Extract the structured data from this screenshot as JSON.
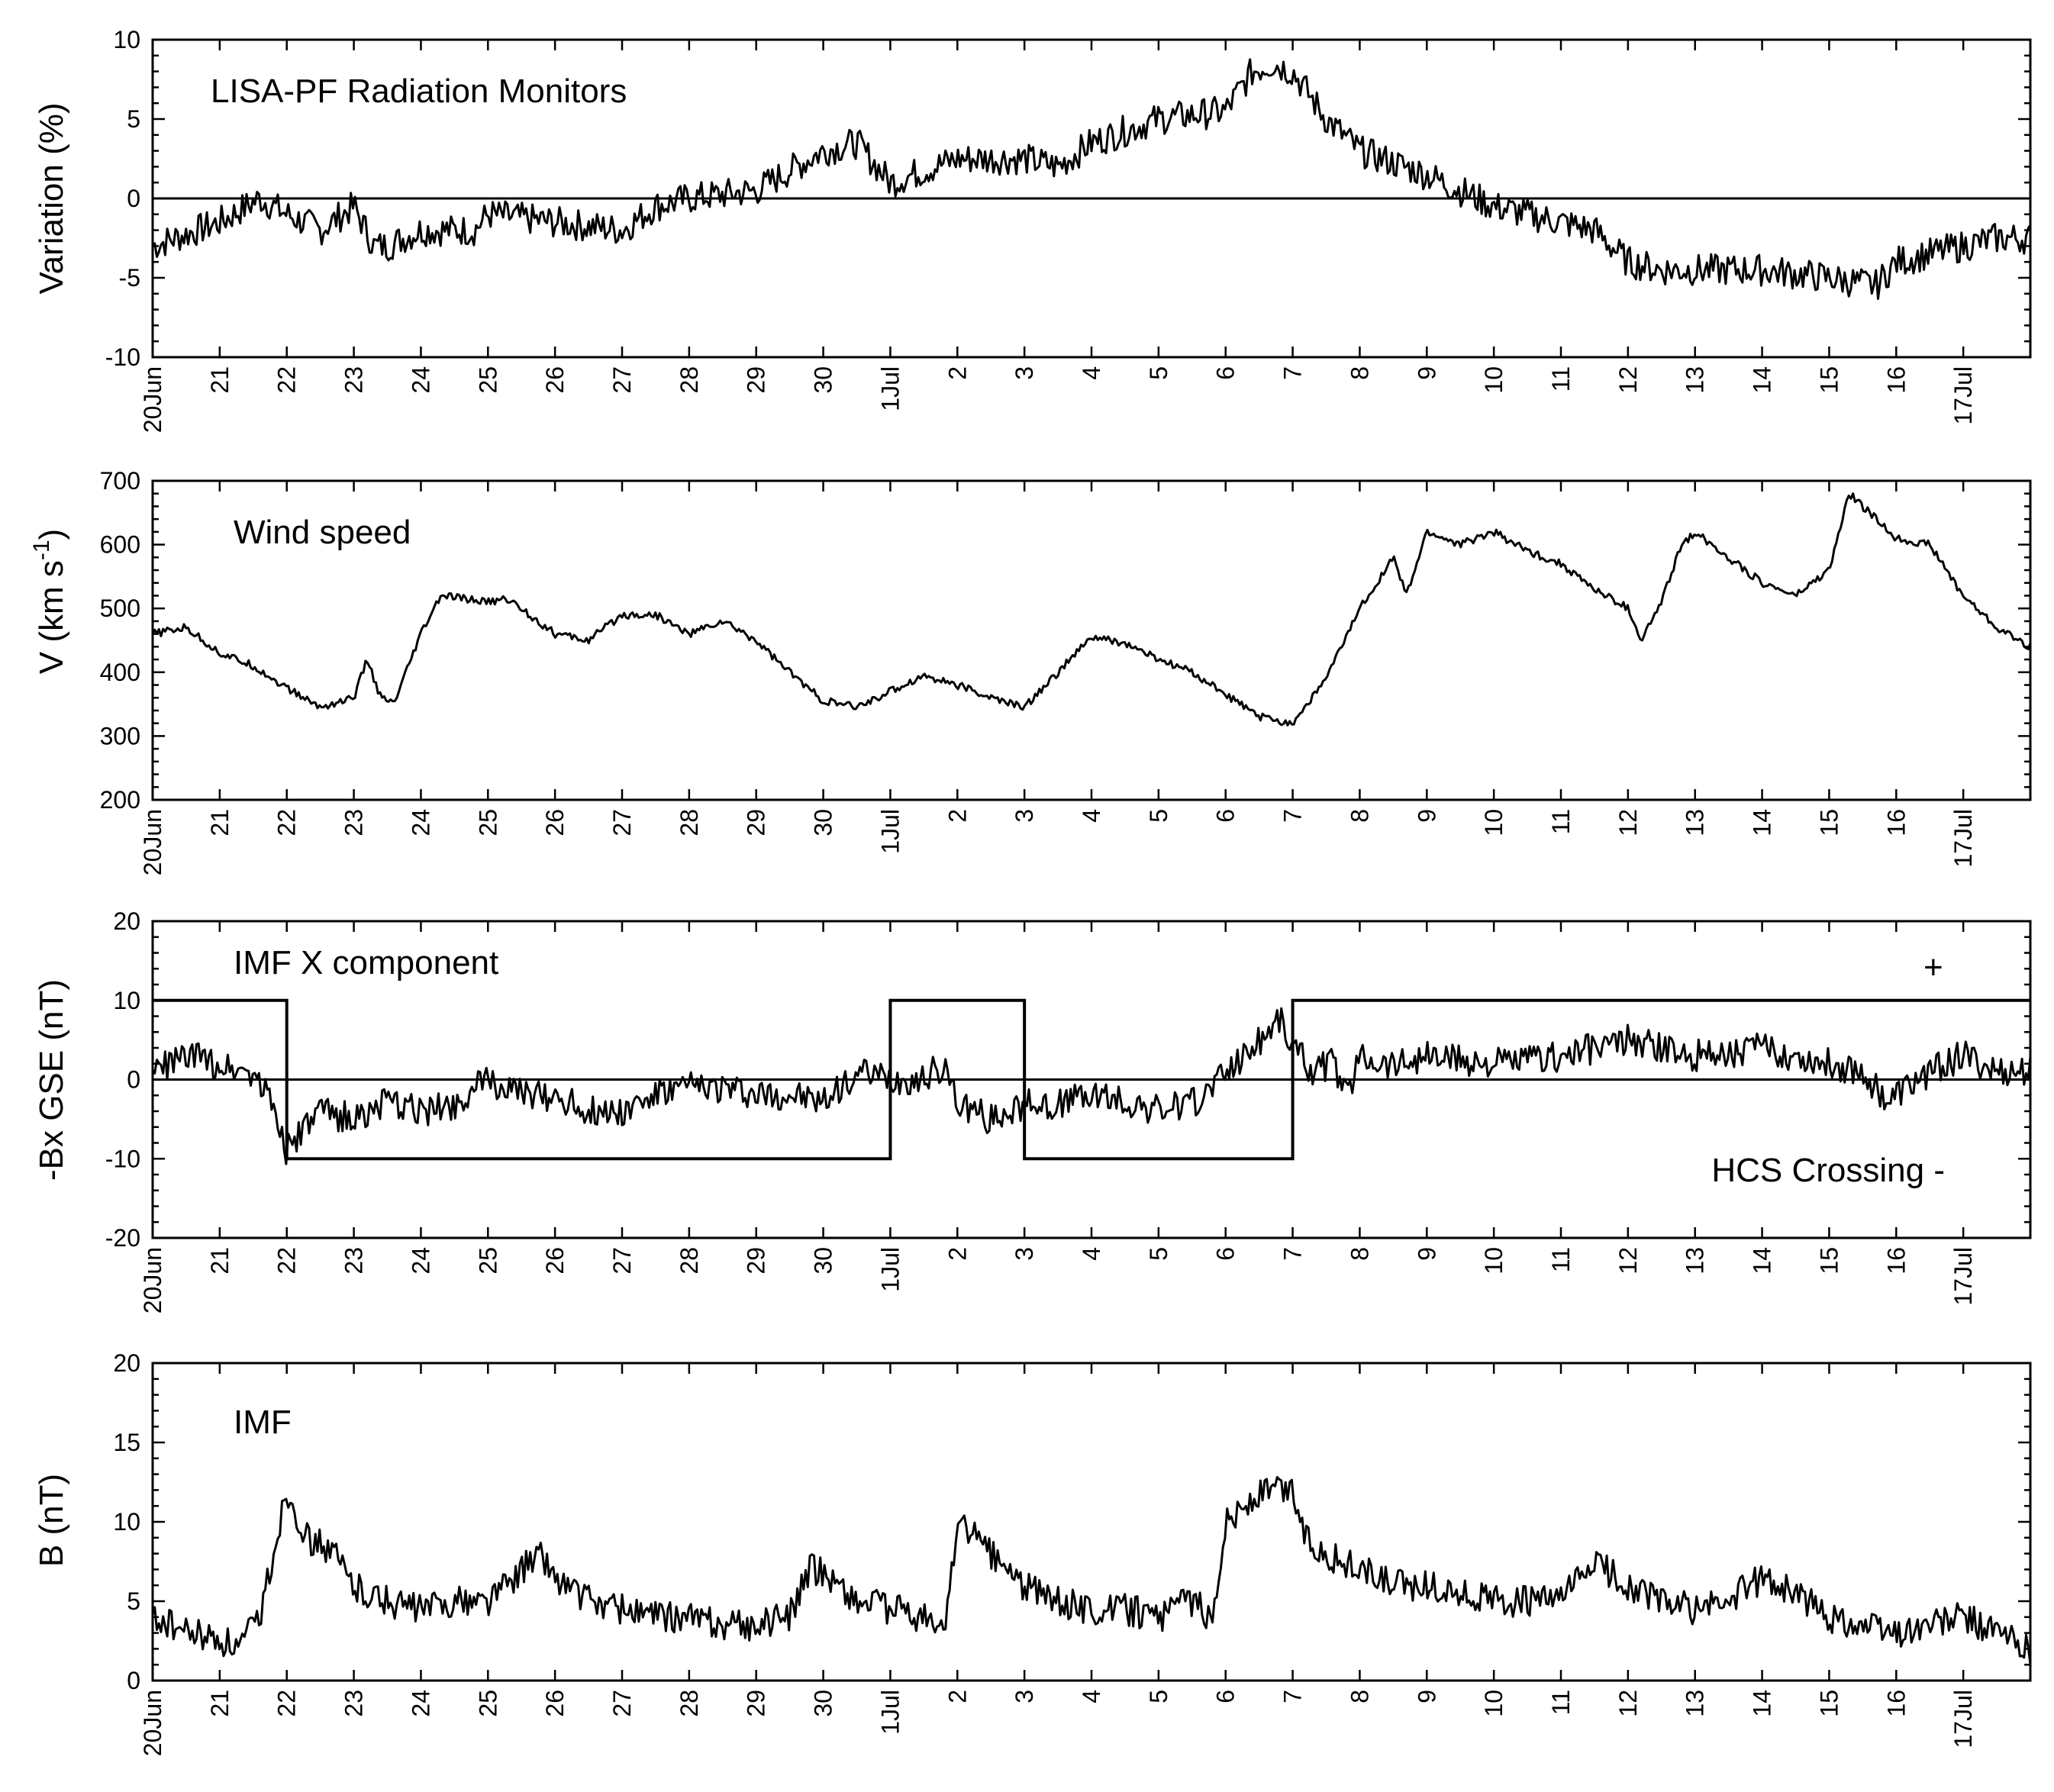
{
  "chart_data": [
    {
      "type": "line",
      "id": "radiation",
      "ylabel": "Variation (%)",
      "ylim": [
        -10,
        10
      ],
      "yticks": [
        -10,
        -5,
        0,
        5,
        10
      ],
      "annotation": "LISA-PF Radiation Monitors",
      "zero_line": true,
      "x_axis": {
        "start": "20 Jun",
        "end": "18 Jul",
        "unit": "day",
        "tick_labels": [
          "20Jun",
          "21",
          "22",
          "23",
          "24",
          "25",
          "26",
          "27",
          "28",
          "29",
          "30",
          "1Jul",
          "2",
          "3",
          "4",
          "5",
          "6",
          "7",
          "8",
          "9",
          "10",
          "11",
          "12",
          "13",
          "14",
          "15",
          "16",
          "17Jul"
        ]
      },
      "series": [
        {
          "x": [
            "20 Jun",
            "21 Jun",
            "21.6 Jun",
            "22 Jun",
            "22.5 Jun",
            "23 Jun",
            "23.3 Jun",
            "23.5 Jun",
            "24 Jun",
            "24.8 Jun",
            "25 Jun",
            "26 Jun",
            "27 Jun",
            "27.5 Jun",
            "28 Jun",
            "29 Jun",
            "30 Jun",
            "30.5 Jun",
            "1 Jul",
            "2 Jul",
            "3 Jul",
            "3.5 Jul",
            "4 Jul",
            "5 Jul",
            "6 Jul",
            "6.4 Jul",
            "6.7 Jul",
            "7 Jul",
            "7.5 Jul",
            "8 Jul",
            "9 Jul",
            "10 Jul",
            "11 Jul",
            "11.5 Jul",
            "12 Jul",
            "12.5 Jul",
            "13 Jul",
            "14 Jul",
            "15 Jul",
            "15.7 Jul",
            "16 Jul",
            "17 Jul",
            "17.5 Jul",
            "18 Jul"
          ],
          "values": [
            -3,
            -1.5,
            0,
            -1,
            -2,
            -0.5,
            -3,
            -3,
            -2,
            -2,
            -1,
            -1.5,
            -2,
            -0.5,
            0,
            0.5,
            3,
            3.5,
            1,
            2.5,
            2.5,
            2,
            3.5,
            5,
            5.5,
            8,
            8.5,
            8,
            5,
            3,
            1.5,
            -0.5,
            -1.5,
            -2,
            -4,
            -4.5,
            -4.5,
            -4.5,
            -5,
            -5.5,
            -4,
            -3,
            -2.5,
            -2.5
          ]
        }
      ]
    },
    {
      "type": "line",
      "id": "wind",
      "ylabel": "V (km s-1)",
      "ylim": [
        200,
        700
      ],
      "yticks": [
        200,
        300,
        400,
        500,
        600,
        700
      ],
      "annotation": "Wind speed",
      "zero_line": false,
      "x_axis": {
        "start": "20 Jun",
        "end": "18 Jul",
        "unit": "day",
        "tick_labels": [
          "20Jun",
          "21",
          "22",
          "23",
          "24",
          "25",
          "26",
          "27",
          "28",
          "29",
          "30",
          "1Jul",
          "2",
          "3",
          "4",
          "5",
          "6",
          "7",
          "8",
          "9",
          "10",
          "11",
          "12",
          "13",
          "14",
          "15",
          "16",
          "17Jul"
        ]
      },
      "series": [
        {
          "x": [
            "20 Jun",
            "20.5 Jun",
            "21 Jun",
            "21.5 Jun",
            "22 Jun",
            "22.5 Jun",
            "23 Jun",
            "23.2 Jun",
            "23.4 Jun",
            "23.6 Jun",
            "24 Jun",
            "24.3 Jun",
            "25 Jun",
            "25.3 Jun",
            "26 Jun",
            "26.5 Jun",
            "27 Jun",
            "27.5 Jun",
            "28 Jun",
            "28.5 Jun",
            "29 Jun",
            "29.5 Jun",
            "30 Jun",
            "30.5 Jun",
            "1 Jul",
            "1.5 Jul",
            "2 Jul",
            "2.5 Jul",
            "3 Jul",
            "3.5 Jul",
            "4 Jul",
            "4.5 Jul",
            "5 Jul",
            "5.5 Jul",
            "6 Jul",
            "6.5 Jul",
            "7 Jul",
            "7.5 Jul",
            "8 Jul",
            "8.5 Jul",
            "8.7 Jul",
            "9 Jul",
            "9.5 Jul",
            "10 Jul",
            "10.5 Jul",
            "11 Jul",
            "11.5 Jul",
            "12 Jul",
            "12.2 Jul",
            "12.5 Jul",
            "12.8 Jul",
            "13 Jul",
            "13.5 Jul",
            "14 Jul",
            "14.5 Jul",
            "15 Jul",
            "15.3 Jul",
            "16 Jul",
            "16.5 Jul",
            "17 Jul",
            "17.5 Jul",
            "18 Jul"
          ],
          "values": [
            460,
            470,
            430,
            410,
            375,
            345,
            360,
            420,
            360,
            350,
            460,
            520,
            510,
            515,
            460,
            450,
            490,
            490,
            460,
            480,
            450,
            400,
            355,
            345,
            370,
            395,
            380,
            360,
            345,
            400,
            455,
            445,
            420,
            400,
            365,
            330,
            320,
            390,
            500,
            580,
            520,
            620,
            600,
            620,
            590,
            570,
            530,
            500,
            450,
            510,
            600,
            620,
            580,
            540,
            520,
            560,
            680,
            610,
            600,
            520,
            470,
            440
          ]
        }
      ]
    },
    {
      "type": "line",
      "id": "imfx",
      "ylabel": "-Bx GSE (nT)",
      "ylim": [
        -20,
        20
      ],
      "yticks": [
        -20,
        -10,
        0,
        10,
        20
      ],
      "annotation": "IMF X component",
      "annotation_plus": "+",
      "annotation_hcs": "HCS Crossing -",
      "zero_line": true,
      "x_axis": {
        "start": "20 Jun",
        "end": "18 Jul",
        "unit": "day",
        "tick_labels": [
          "20Jun",
          "21",
          "22",
          "23",
          "24",
          "25",
          "26",
          "27",
          "28",
          "29",
          "30",
          "1Jul",
          "2",
          "3",
          "4",
          "5",
          "6",
          "7",
          "8",
          "9",
          "10",
          "11",
          "12",
          "13",
          "14",
          "15",
          "16",
          "17Jul"
        ]
      },
      "step_series": {
        "name": "HCS Crossing",
        "x": [
          "20 Jun",
          "22 Jun",
          "1 Jul",
          "3 Jul",
          "7 Jul",
          "18 Jul"
        ],
        "values": [
          10,
          -10,
          10,
          -10,
          10,
          10
        ]
      },
      "series": [
        {
          "x": [
            "20 Jun",
            "20.5 Jun",
            "21 Jun",
            "21.5 Jun",
            "21.8 Jun",
            "22 Jun",
            "22.5 Jun",
            "23 Jun",
            "23.5 Jun",
            "24 Jun",
            "24.5 Jun",
            "25 Jun",
            "25.5 Jun",
            "26 Jun",
            "26.5 Jun",
            "27 Jun",
            "27.5 Jun",
            "28 Jun",
            "28.5 Jun",
            "29 Jun",
            "29.5 Jun",
            "30 Jun",
            "30.5 Jun",
            "1 Jul",
            "1.5 Jul",
            "1.8 Jul",
            "2 Jul",
            "2.5 Jul",
            "3 Jul",
            "3.5 Jul",
            "4 Jul",
            "4.5 Jul",
            "5 Jul",
            "5.5 Jul",
            "6 Jul",
            "6.5 Jul",
            "6.8 Jul",
            "7 Jul",
            "7.3 Jul",
            "7.6 Jul",
            "7.8 Jul",
            "8 Jul",
            "8.5 Jul",
            "9 Jul",
            "10 Jul",
            "11 Jul",
            "12 Jul",
            "13 Jul",
            "14 Jul",
            "15 Jul",
            "15.5 Jul",
            "15.9 Jul",
            "16 Jul",
            "16.5 Jul",
            "17 Jul",
            "17.5 Jul",
            "18 Jul"
          ],
          "values": [
            1,
            3,
            2,
            1,
            -3,
            -9,
            -4,
            -5,
            -3,
            -4,
            -3,
            0,
            -2,
            -2,
            -4,
            -4,
            -2,
            -1,
            -1,
            -2,
            -2,
            -3,
            1,
            0,
            0,
            2,
            -3,
            -5,
            -3,
            -3,
            -2,
            -3,
            -4,
            -3,
            1,
            5,
            8,
            4,
            1,
            2,
            -2,
            3,
            2,
            3,
            2,
            3,
            5,
            3,
            4,
            2,
            1,
            -3,
            -2,
            1,
            3,
            1,
            1
          ]
        }
      ]
    },
    {
      "type": "line",
      "id": "imf",
      "ylabel": "B (nT)",
      "ylim": [
        0,
        20
      ],
      "yticks": [
        0,
        5,
        10,
        15,
        20
      ],
      "annotation": "IMF",
      "zero_line": false,
      "x_axis": {
        "start": "20 Jun",
        "end": "18 Jul",
        "unit": "day",
        "tick_labels": [
          "20Jun",
          "21",
          "22",
          "23",
          "24",
          "25",
          "26",
          "27",
          "28",
          "29",
          "30",
          "1Jul",
          "2",
          "3",
          "4",
          "5",
          "6",
          "7",
          "8",
          "9",
          "10",
          "11",
          "12",
          "13",
          "14",
          "15",
          "16",
          "17Jul"
        ]
      },
      "series": [
        {
          "x": [
            "20 Jun",
            "20.5 Jun",
            "21 Jun",
            "21.3 Jun",
            "21.6 Jun",
            "21.9 Jun",
            "22 Jun",
            "22.3 Jun",
            "22.7 Jun",
            "23 Jun",
            "23.5 Jun",
            "24 Jun",
            "24.5 Jun",
            "25 Jun",
            "25.5 Jun",
            "25.8 Jun",
            "26 Jun",
            "26.5 Jun",
            "27 Jun",
            "27.5 Jun",
            "28 Jun",
            "28.5 Jun",
            "29 Jun",
            "29.5 Jun",
            "29.8 Jun",
            "30 Jun",
            "30.5 Jun",
            "1 Jul",
            "1.5 Jul",
            "1.8 Jul",
            "2 Jul",
            "2.5 Jul",
            "3 Jul",
            "3.5 Jul",
            "4 Jul",
            "4.5 Jul",
            "5 Jul",
            "5.5 Jul",
            "5.8 Jul",
            "6 Jul",
            "6.3 Jul",
            "6.6 Jul",
            "7 Jul",
            "7.2 Jul",
            "7.5 Jul",
            "8 Jul",
            "8.5 Jul",
            "9 Jul",
            "10 Jul",
            "10.5 Jul",
            "11 Jul",
            "11.5 Jul",
            "12 Jul",
            "12.5 Jul",
            "13 Jul",
            "13.5 Jul",
            "14 Jul",
            "14.5 Jul",
            "15 Jul",
            "15.5 Jul",
            "16 Jul",
            "16.5 Jul",
            "17 Jul",
            "17.5 Jul",
            "18 Jul"
          ],
          "values": [
            4,
            3,
            2.5,
            2,
            4,
            10,
            12,
            9,
            8,
            6,
            5,
            4.5,
            5,
            5,
            7,
            8,
            6.5,
            5,
            4.5,
            4,
            4,
            3.5,
            3.5,
            4,
            7,
            7,
            5,
            4.5,
            4,
            3,
            10,
            8,
            6,
            5,
            4.5,
            4.5,
            4,
            5,
            4,
            10,
            11,
            12,
            12,
            9,
            8,
            7,
            6,
            6,
            5,
            5,
            5,
            7.5,
            6,
            5,
            4.5,
            5,
            6.5,
            5.5,
            4,
            3.5,
            3,
            3.5,
            4,
            3,
            2
          ]
        }
      ]
    }
  ]
}
